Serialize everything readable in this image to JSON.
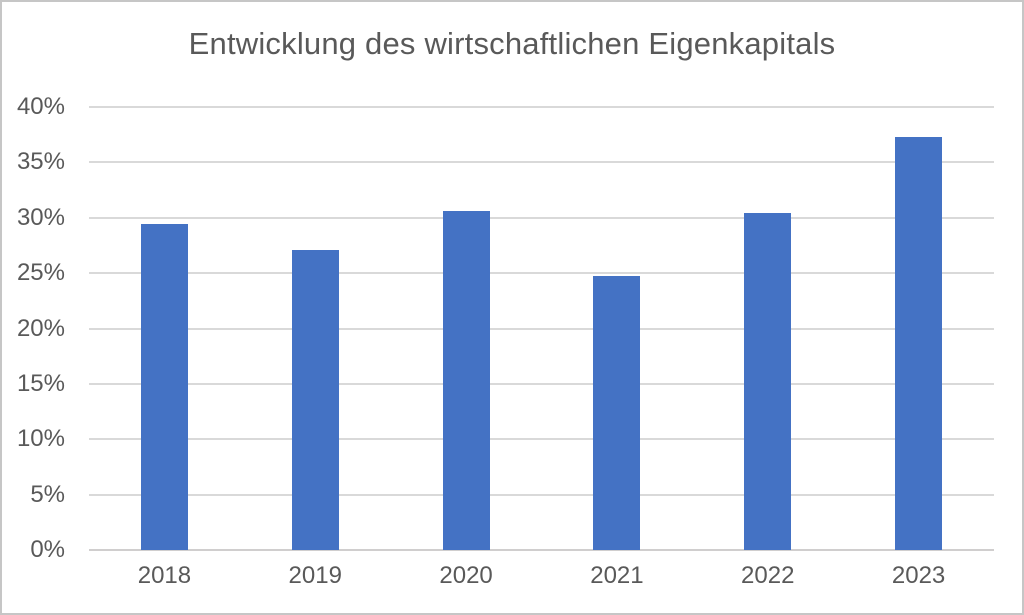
{
  "frame": {
    "background": "#ffffff",
    "border_color": "#c6c6c6"
  },
  "chart_data": {
    "type": "bar",
    "title": "Entwicklung des wirtschaftlichen Eigenkapitals",
    "categories": [
      "2018",
      "2019",
      "2020",
      "2021",
      "2022",
      "2023"
    ],
    "values": [
      29.4,
      27.1,
      30.6,
      24.7,
      30.4,
      37.3
    ],
    "unit": "%",
    "xlabel": "",
    "ylabel": "",
    "ylim": [
      0,
      40
    ],
    "ytick_step": 5,
    "ytick_labels": [
      "0%",
      "5%",
      "10%",
      "15%",
      "20%",
      "25%",
      "30%",
      "35%",
      "40%"
    ],
    "grid": true,
    "legend": false,
    "colors": {
      "bar": "#4472c4",
      "gridline": "#d9d9d9",
      "axis_line": "#d0cece",
      "tick_label": "#595959",
      "title": "#595959"
    }
  }
}
